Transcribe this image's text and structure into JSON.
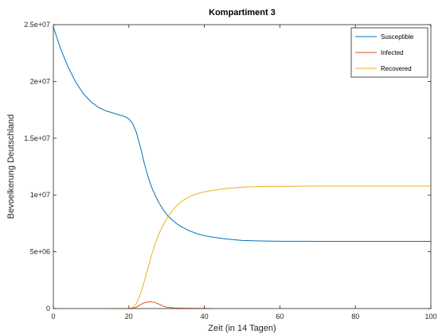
{
  "chart_data": {
    "type": "line",
    "title": "Kompartiment 3",
    "xlabel": "Zeit (in 14 Tagen)",
    "ylabel": "Bevoelkerung Deutschland",
    "xlim": [
      0,
      100
    ],
    "ylim": [
      0,
      25000000
    ],
    "xticks": [
      0,
      20,
      40,
      60,
      80,
      100
    ],
    "xtick_labels": [
      "0",
      "20",
      "40",
      "60",
      "80",
      "100"
    ],
    "yticks": [
      0,
      5000000,
      10000000,
      15000000,
      20000000,
      25000000
    ],
    "ytick_labels": [
      "0",
      "5e+06",
      "1e+07",
      "1.5e+07",
      "2e+07",
      "2.5e+07"
    ],
    "grid": false,
    "legend_position": "top-right",
    "series": [
      {
        "name": "Susceptible",
        "color": "#0072BD",
        "x": [
          0,
          2,
          4,
          6,
          8,
          10,
          12,
          14,
          16,
          18,
          19,
          20,
          21,
          22,
          23,
          24,
          25,
          26,
          27,
          28,
          29,
          30,
          31,
          32,
          33,
          34,
          36,
          38,
          40,
          42,
          45,
          50,
          55,
          60,
          70,
          80,
          90,
          100
        ],
        "y": [
          24800000,
          22800000,
          21200000,
          19900000,
          18900000,
          18200000,
          17700000,
          17400000,
          17200000,
          17000000,
          16900000,
          16700000,
          16300000,
          15500000,
          14300000,
          12900000,
          11700000,
          10700000,
          9950000,
          9300000,
          8750000,
          8300000,
          7950000,
          7650000,
          7400000,
          7180000,
          6850000,
          6600000,
          6420000,
          6300000,
          6150000,
          6000000,
          5950000,
          5930000,
          5920000,
          5920000,
          5920000,
          5920000
        ]
      },
      {
        "name": "Infected",
        "color": "#D95319",
        "x": [
          15,
          20,
          21,
          22,
          23,
          24,
          25,
          26,
          27,
          28,
          29,
          30,
          32,
          35,
          38,
          42
        ],
        "y": [
          0,
          0,
          20000,
          120000,
          330000,
          500000,
          580000,
          590000,
          520000,
          380000,
          230000,
          120000,
          50000,
          25000,
          15000,
          0
        ]
      },
      {
        "name": "Recovered",
        "color": "#EDB120",
        "x": [
          15,
          20,
          21,
          22,
          23,
          24,
          25,
          26,
          27,
          28,
          29,
          30,
          31,
          32,
          33,
          34,
          36,
          38,
          40,
          42,
          45,
          50,
          55,
          60,
          70,
          80,
          90,
          100
        ],
        "y": [
          0,
          0,
          100000,
          450000,
          1200000,
          2300000,
          3500000,
          4700000,
          5750000,
          6600000,
          7300000,
          7900000,
          8400000,
          8800000,
          9150000,
          9450000,
          9850000,
          10100000,
          10280000,
          10400000,
          10550000,
          10700000,
          10750000,
          10770000,
          10780000,
          10780000,
          10780000,
          10780000
        ]
      }
    ]
  }
}
